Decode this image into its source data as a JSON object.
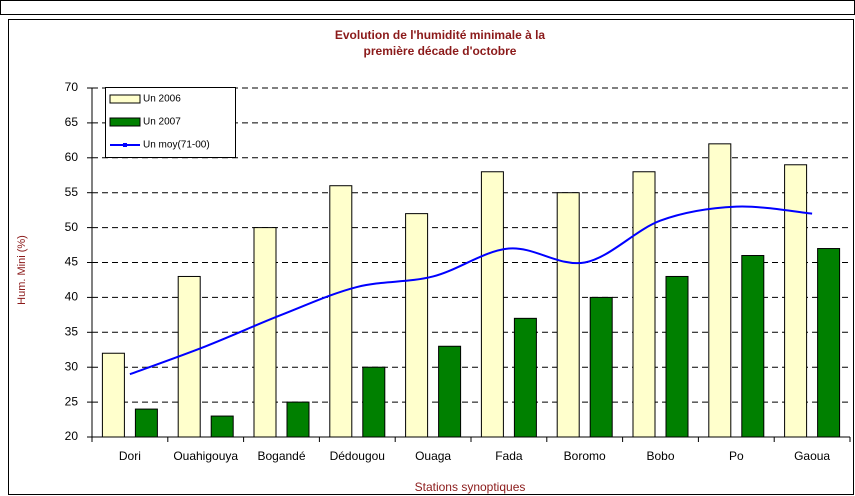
{
  "chart_data": {
    "type": "bar",
    "title": [
      "Evolution de l'humidité minimale à la",
      "première décade d'octobre"
    ],
    "x_label": "Stations synoptiques",
    "y_label": "Hum. Mini (%)",
    "categories": [
      "Dori",
      "Ouahigouya",
      "Bogandé",
      "Dédougou",
      "Ouaga",
      "Fada",
      "Boromo",
      "Bobo",
      "Po",
      "Gaoua"
    ],
    "series": [
      {
        "name": "Un 2006",
        "type": "bar",
        "color": "#ffffcc",
        "values": [
          32,
          43,
          50,
          56,
          52,
          58,
          55,
          58,
          62,
          59
        ]
      },
      {
        "name": "Un 2007",
        "type": "bar",
        "color": "#008000",
        "values": [
          24,
          23,
          25,
          30,
          33,
          37,
          40,
          43,
          46,
          47
        ]
      },
      {
        "name": "Un moy(71-00)",
        "type": "line",
        "color": "#0000ff",
        "values": [
          29,
          33,
          37.5,
          41.5,
          43,
          47,
          45,
          51,
          53,
          52
        ]
      }
    ],
    "ylim": [
      20,
      70
    ],
    "yticks": [
      20,
      25,
      30,
      35,
      40,
      45,
      50,
      55,
      60,
      65,
      70
    ],
    "grid": true,
    "legend": "top-left"
  }
}
